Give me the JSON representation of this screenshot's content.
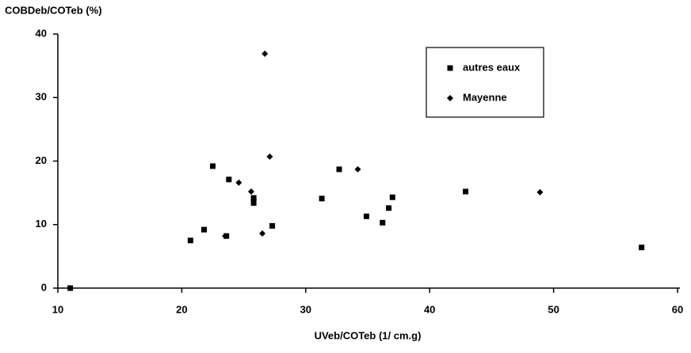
{
  "chart_data": {
    "type": "scatter",
    "y_label": "COBDeb/COTeb (%)",
    "x_label": "UVeb/COTeb (1/ cm.g)",
    "xlim": [
      10,
      60
    ],
    "xticks": [
      10,
      20,
      30,
      40,
      50,
      60
    ],
    "ylim": [
      0,
      40
    ],
    "yticks": [
      0,
      10,
      20,
      30,
      40
    ],
    "legend_position": "upper right",
    "series": [
      {
        "name": "autres eaux",
        "color": "#000000",
        "marker": "square",
        "x": [
          11,
          20.7,
          21.8,
          22.5,
          23.6,
          23.8,
          25.8,
          25.8,
          27.3,
          31.3,
          32.7,
          34.9,
          36.2,
          36.7,
          37.0,
          42.9,
          57.1
        ],
        "values": [
          0,
          7.5,
          9.2,
          19.2,
          8.2,
          17.1,
          14.2,
          13.4,
          9.8,
          14.1,
          18.7,
          11.3,
          10.3,
          12.6,
          14.3,
          15.2,
          6.4
        ]
      },
      {
        "name": "Mayenne",
        "color": "#000000",
        "marker": "diamond",
        "x": [
          26.7,
          27.1,
          24.6,
          25.6,
          25.8,
          34.2,
          48.9,
          26.5,
          23.5
        ],
        "values": [
          36.9,
          20.7,
          16.6,
          15.2,
          13.9,
          18.7,
          15.1,
          8.6,
          8.2
        ]
      }
    ]
  }
}
